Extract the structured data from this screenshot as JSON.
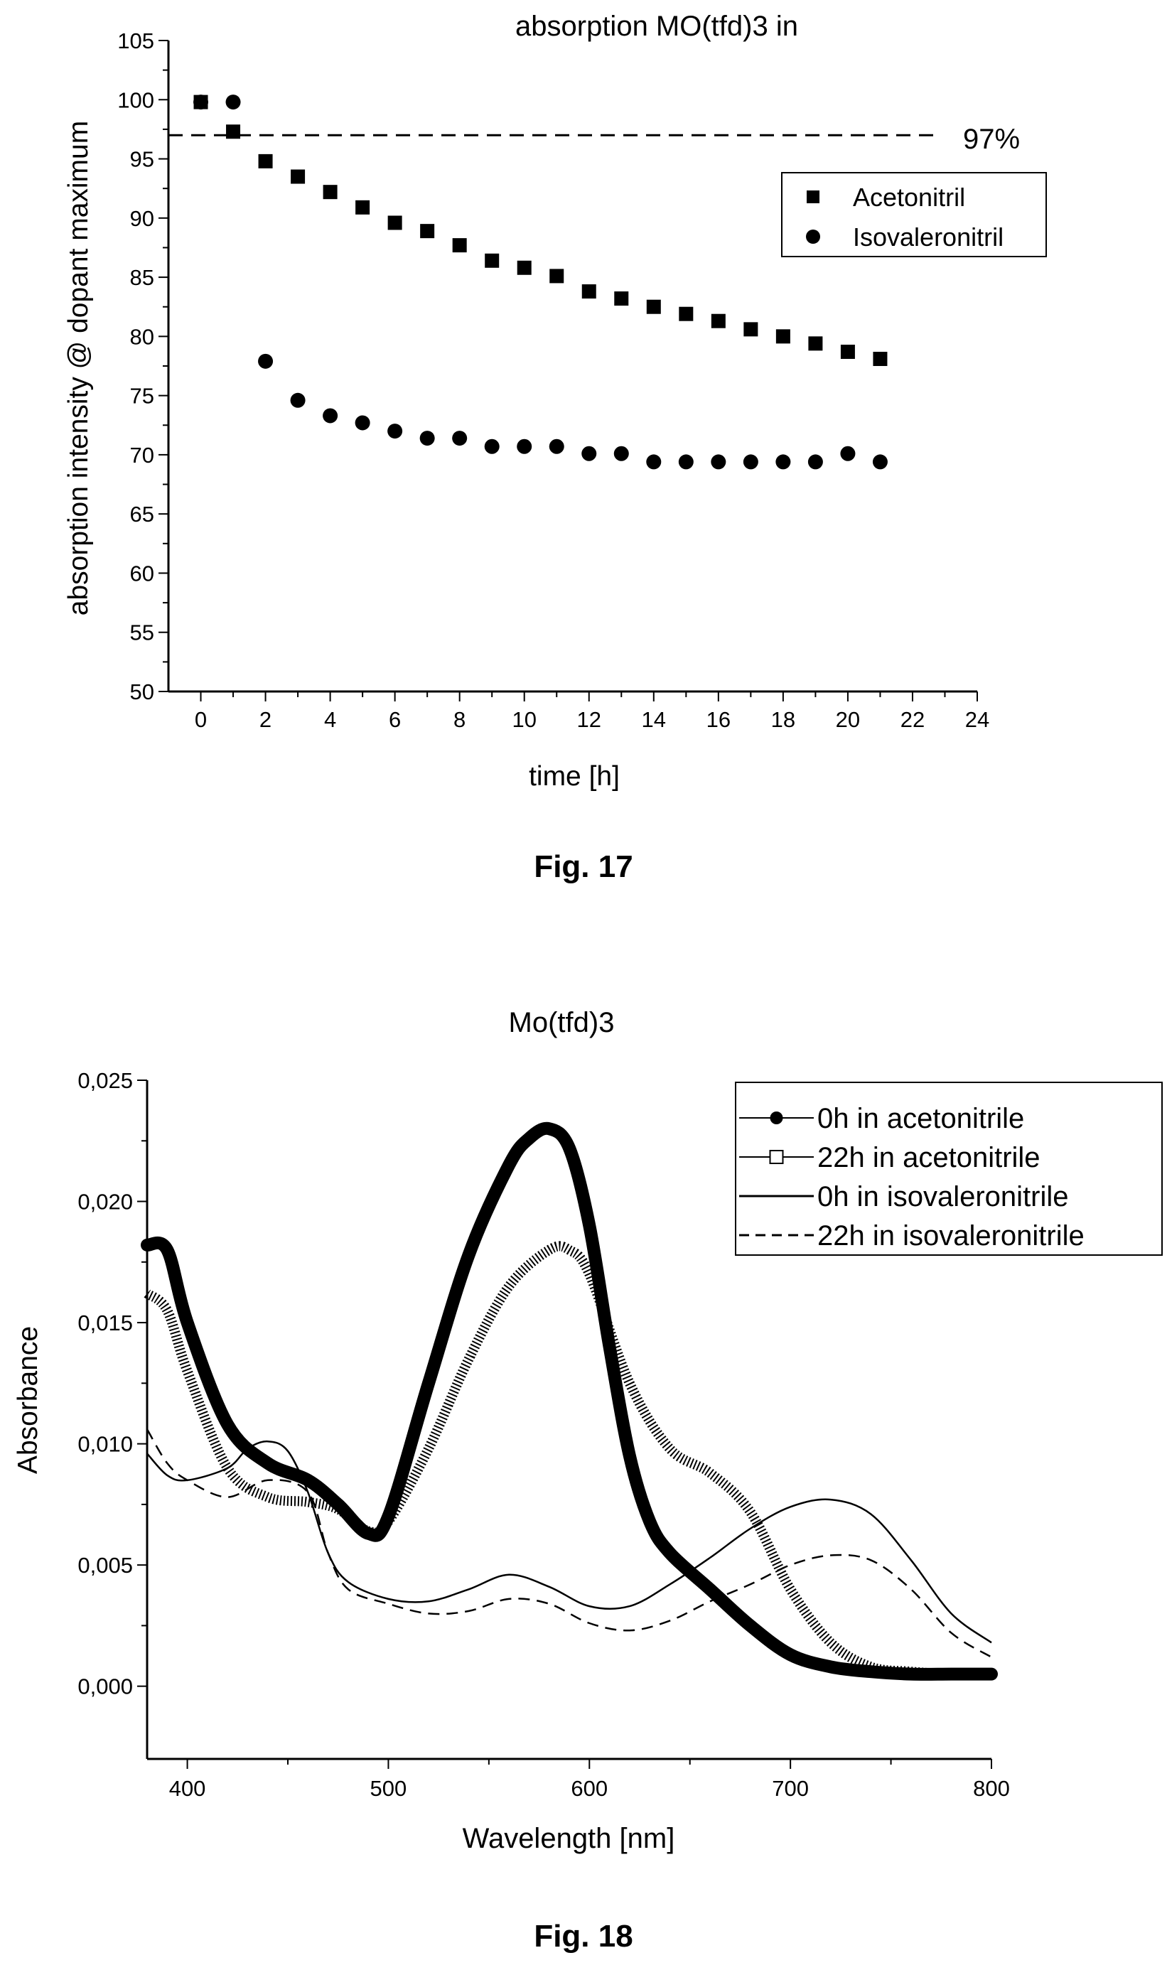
{
  "figures": [
    {
      "caption": "Fig. 17"
    },
    {
      "caption": "Fig. 18"
    }
  ],
  "chart_data": [
    {
      "type": "scatter",
      "title": "absorption MO(tfd)3 in",
      "xlabel": "time [h]",
      "ylabel": "absorption intensity @ dopant maximum",
      "xlim": [
        -1,
        24
      ],
      "ylim": [
        50,
        105
      ],
      "xticks": [
        "0",
        "2",
        "4",
        "6",
        "8",
        "10",
        "12",
        "14",
        "16",
        "18",
        "20",
        "22",
        "24"
      ],
      "yticks": [
        "50",
        "55",
        "60",
        "65",
        "70",
        "75",
        "80",
        "85",
        "90",
        "95",
        "100",
        "105"
      ],
      "grid": false,
      "legend_position": "right",
      "reference_line": {
        "y": 97,
        "label": "97%",
        "style": "dashed"
      },
      "series": [
        {
          "name": "Acetonitril",
          "marker": "square",
          "x": [
            0,
            1,
            2,
            3,
            4,
            5,
            6,
            7,
            8,
            9,
            10,
            11,
            12,
            13,
            14,
            15,
            16,
            17,
            18,
            19,
            20,
            21
          ],
          "y": [
            99.8,
            97.3,
            94.8,
            93.5,
            92.2,
            90.9,
            89.6,
            88.9,
            87.7,
            86.4,
            85.8,
            85.1,
            83.8,
            83.2,
            82.5,
            81.9,
            81.3,
            80.6,
            80.0,
            79.4,
            78.7,
            78.1
          ]
        },
        {
          "name": "Isovaleronitril",
          "marker": "circle",
          "x": [
            0,
            1,
            2,
            3,
            4,
            5,
            6,
            7,
            8,
            9,
            10,
            11,
            12,
            13,
            14,
            15,
            16,
            17,
            18,
            19,
            20,
            21
          ],
          "y": [
            99.8,
            99.8,
            77.9,
            74.6,
            73.3,
            72.7,
            72.0,
            71.4,
            71.4,
            70.7,
            70.7,
            70.7,
            70.1,
            70.1,
            69.4,
            69.4,
            69.4,
            69.4,
            69.4,
            69.4,
            70.1,
            69.4
          ]
        }
      ]
    },
    {
      "type": "line",
      "title": "Mo(tfd)3",
      "xlabel": "Wavelength [nm]",
      "ylabel": "Absorbance",
      "xlim": [
        380,
        800
      ],
      "ylim": [
        -0.003,
        0.025
      ],
      "xticks": [
        "400",
        "500",
        "600",
        "700",
        "800"
      ],
      "yticks": [
        "0,000",
        "0,005",
        "0,010",
        "0,015",
        "0,020",
        "0,025"
      ],
      "grid": false,
      "legend_position": "top-right",
      "series": [
        {
          "name": "0h in acetonitrile",
          "marker": "filled-circle",
          "x": [
            380,
            390,
            400,
            420,
            440,
            460,
            475,
            490,
            500,
            520,
            540,
            560,
            570,
            580,
            590,
            600,
            610,
            620,
            630,
            640,
            660,
            680,
            700,
            720,
            740,
            760,
            780,
            800
          ],
          "y": [
            0.0182,
            0.018,
            0.015,
            0.0108,
            0.0092,
            0.0085,
            0.0075,
            0.0063,
            0.007,
            0.0125,
            0.0178,
            0.0215,
            0.0226,
            0.023,
            0.0222,
            0.019,
            0.014,
            0.0095,
            0.0068,
            0.0055,
            0.004,
            0.0025,
            0.0013,
            0.0008,
            0.0006,
            0.0005,
            0.0005,
            0.0005
          ]
        },
        {
          "name": "22h in acetonitrile",
          "marker": "open-square",
          "x": [
            380,
            390,
            400,
            420,
            440,
            460,
            475,
            490,
            500,
            520,
            540,
            560,
            580,
            590,
            600,
            620,
            640,
            660,
            680,
            700,
            720,
            740,
            760,
            780,
            800
          ],
          "y": [
            0.0162,
            0.0155,
            0.013,
            0.009,
            0.0078,
            0.0076,
            0.0073,
            0.0064,
            0.0068,
            0.0098,
            0.0135,
            0.0165,
            0.018,
            0.018,
            0.017,
            0.0125,
            0.0098,
            0.0088,
            0.0072,
            0.004,
            0.0018,
            0.0008,
            0.0006,
            0.0005,
            0.0005
          ]
        },
        {
          "name": "0h in isovaleronitrile",
          "style": "solid",
          "x": [
            380,
            390,
            400,
            420,
            430,
            440,
            450,
            460,
            470,
            480,
            500,
            520,
            540,
            560,
            580,
            600,
            620,
            640,
            660,
            680,
            700,
            720,
            740,
            760,
            780,
            800
          ],
          "y": [
            0.0096,
            0.0087,
            0.0085,
            0.009,
            0.0098,
            0.0101,
            0.0097,
            0.008,
            0.0055,
            0.0043,
            0.0036,
            0.0035,
            0.004,
            0.0046,
            0.0041,
            0.0033,
            0.0033,
            0.0042,
            0.0053,
            0.0065,
            0.0074,
            0.0077,
            0.0071,
            0.0052,
            0.003,
            0.0018
          ]
        },
        {
          "name": "22h in isovaleronitrile",
          "style": "dashed",
          "x": [
            380,
            390,
            400,
            420,
            440,
            460,
            470,
            480,
            500,
            520,
            540,
            560,
            580,
            600,
            620,
            640,
            660,
            680,
            700,
            720,
            740,
            760,
            780,
            800
          ],
          "y": [
            0.0106,
            0.0092,
            0.0085,
            0.0078,
            0.0085,
            0.008,
            0.0055,
            0.004,
            0.0034,
            0.003,
            0.0031,
            0.0036,
            0.0034,
            0.0026,
            0.0023,
            0.0027,
            0.0035,
            0.0042,
            0.005,
            0.0054,
            0.0052,
            0.004,
            0.0022,
            0.0012
          ]
        }
      ]
    }
  ]
}
